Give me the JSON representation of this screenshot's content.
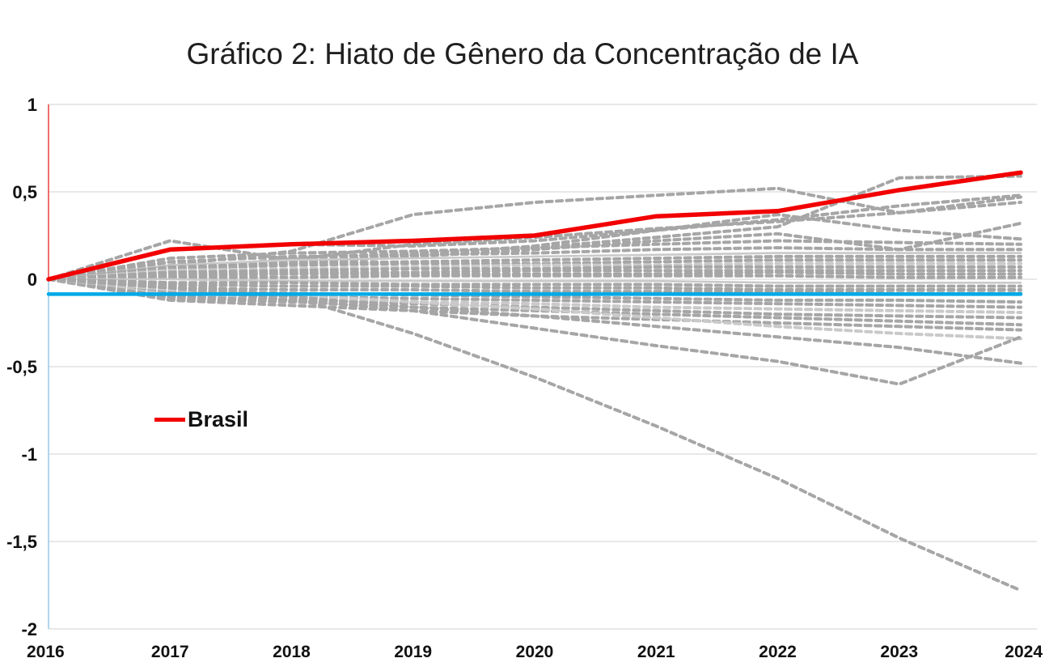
{
  "title": "Gráfico 2: Hiato de Gênero da Concentração de IA",
  "legend": {
    "label": "Brasil"
  },
  "colors": {
    "brasil": "#f20000",
    "highlight_blue": "#00a9e8",
    "gray": "#a6a6a6",
    "gray_light": "#c9c9c9",
    "gridline": "#d9d9d9",
    "axis_segment_red": "#f25c5c",
    "axis_segment_blue": "#a8d2ea",
    "tick_label": "#111111"
  },
  "chart_data": {
    "type": "line",
    "x": [
      2016,
      2017,
      2018,
      2019,
      2020,
      2021,
      2022,
      2023,
      2024
    ],
    "x_tick_labels": [
      "2016",
      "2017",
      "2018",
      "2019",
      "2020",
      "2021",
      "2022",
      "2023",
      "2024"
    ],
    "y_ticks": [
      1,
      0.5,
      0,
      -0.5,
      -1,
      -1.5,
      -2
    ],
    "y_tick_labels": [
      "1",
      "0,5",
      "0",
      "-0,5",
      "-1",
      "-1,5",
      "-2"
    ],
    "ylim": [
      -2,
      1
    ],
    "xlabel": "",
    "ylabel": "",
    "grid": "horizontal",
    "legend_position": "inside-left",
    "series": [
      {
        "id": "country-01",
        "role": "gray",
        "values": [
          0,
          0.08,
          0.16,
          0.37,
          0.44,
          0.48,
          0.52,
          0.38,
          0.47
        ]
      },
      {
        "id": "country-02",
        "role": "gray",
        "values": [
          0,
          0.22,
          0.11,
          0.2,
          0.24,
          0.29,
          0.33,
          0.38,
          0.44
        ]
      },
      {
        "id": "country-03",
        "role": "gray",
        "values": [
          0,
          0.05,
          0.12,
          0.15,
          0.18,
          0.24,
          0.3,
          0.58,
          0.59
        ]
      },
      {
        "id": "country-04",
        "role": "gray",
        "values": [
          0,
          0.17,
          0.2,
          0.19,
          0.22,
          0.28,
          0.34,
          0.42,
          0.48
        ]
      },
      {
        "id": "country-05",
        "role": "gray",
        "values": [
          0,
          0.06,
          0.1,
          0.14,
          0.19,
          0.28,
          0.37,
          0.28,
          0.23
        ]
      },
      {
        "id": "country-06",
        "role": "gray",
        "values": [
          0,
          0.04,
          0.09,
          0.13,
          0.17,
          0.22,
          0.26,
          0.17,
          0.32
        ]
      },
      {
        "id": "country-07",
        "role": "gray",
        "values": [
          0,
          0.12,
          0.15,
          0.16,
          0.18,
          0.2,
          0.22,
          0.21,
          0.2
        ]
      },
      {
        "id": "country-08",
        "role": "gray",
        "values": [
          0,
          0.1,
          0.13,
          0.14,
          0.15,
          0.17,
          0.18,
          0.17,
          0.17
        ]
      },
      {
        "id": "country-09",
        "role": "gray-solid-light",
        "values": [
          0,
          0.08,
          0.11,
          0.12,
          0.13,
          0.14,
          0.15,
          0.15,
          0.15
        ]
      },
      {
        "id": "country-10",
        "role": "gray",
        "values": [
          0,
          0.07,
          0.09,
          0.1,
          0.11,
          0.12,
          0.13,
          0.13,
          0.13
        ]
      },
      {
        "id": "country-11",
        "role": "gray",
        "values": [
          0,
          0.06,
          0.08,
          0.09,
          0.09,
          0.1,
          0.11,
          0.11,
          0.11
        ]
      },
      {
        "id": "country-12",
        "role": "gray-light",
        "values": [
          0,
          0.05,
          0.06,
          0.07,
          0.08,
          0.08,
          0.09,
          0.09,
          0.09
        ]
      },
      {
        "id": "country-13",
        "role": "gray",
        "values": [
          0,
          0.04,
          0.05,
          0.06,
          0.06,
          0.07,
          0.07,
          0.07,
          0.07
        ]
      },
      {
        "id": "country-14",
        "role": "gray",
        "values": [
          0,
          0.03,
          0.04,
          0.04,
          0.05,
          0.05,
          0.05,
          0.05,
          0.05
        ]
      },
      {
        "id": "country-15",
        "role": "gray",
        "values": [
          0,
          0.02,
          0.03,
          0.03,
          0.03,
          0.03,
          0.04,
          0.03,
          0.03
        ]
      },
      {
        "id": "country-16",
        "role": "gray",
        "values": [
          0,
          0.01,
          0.01,
          0.02,
          0.02,
          0.02,
          0.02,
          0.01,
          0.01
        ]
      },
      {
        "id": "country-17",
        "role": "gray-solid-light",
        "values": [
          0,
          0,
          -0.01,
          -0.01,
          -0.01,
          -0.01,
          -0.02,
          -0.02,
          -0.02
        ]
      },
      {
        "id": "country-18",
        "role": "gray",
        "values": [
          0,
          -0.02,
          -0.02,
          -0.03,
          -0.03,
          -0.03,
          -0.04,
          -0.04,
          -0.04
        ]
      },
      {
        "id": "country-19",
        "role": "gray",
        "values": [
          0,
          -0.03,
          -0.04,
          -0.04,
          -0.05,
          -0.05,
          -0.06,
          -0.06,
          -0.06
        ]
      },
      {
        "id": "country-20",
        "role": "gray",
        "values": [
          0,
          -0.05,
          -0.06,
          -0.06,
          -0.07,
          -0.07,
          -0.07,
          -0.08,
          -0.08
        ]
      },
      {
        "id": "country-21",
        "role": "gray",
        "values": [
          0,
          -0.07,
          -0.08,
          -0.09,
          -0.1,
          -0.11,
          -0.12,
          -0.12,
          -0.13
        ]
      },
      {
        "id": "country-22",
        "role": "gray",
        "values": [
          0,
          -0.08,
          -0.1,
          -0.11,
          -0.12,
          -0.13,
          -0.14,
          -0.15,
          -0.16
        ]
      },
      {
        "id": "country-23",
        "role": "gray-light",
        "values": [
          0,
          -0.09,
          -0.11,
          -0.13,
          -0.14,
          -0.16,
          -0.17,
          -0.18,
          -0.19
        ]
      },
      {
        "id": "country-24",
        "role": "gray",
        "values": [
          0,
          -0.1,
          -0.12,
          -0.14,
          -0.16,
          -0.18,
          -0.2,
          -0.21,
          -0.22
        ]
      },
      {
        "id": "country-25",
        "role": "gray",
        "values": [
          0,
          -0.11,
          -0.13,
          -0.16,
          -0.18,
          -0.2,
          -0.22,
          -0.24,
          -0.26
        ]
      },
      {
        "id": "country-26",
        "role": "gray",
        "values": [
          0,
          -0.12,
          -0.15,
          -0.18,
          -0.21,
          -0.23,
          -0.25,
          -0.27,
          -0.29
        ]
      },
      {
        "id": "country-27",
        "role": "gray-light",
        "values": [
          0,
          -0.06,
          -0.09,
          -0.13,
          -0.17,
          -0.22,
          -0.27,
          -0.31,
          -0.34
        ]
      },
      {
        "id": "country-28",
        "role": "gray",
        "values": [
          0,
          -0.04,
          -0.1,
          -0.16,
          -0.21,
          -0.27,
          -0.33,
          -0.39,
          -0.48
        ]
      },
      {
        "id": "country-29",
        "role": "gray",
        "values": [
          0,
          -0.05,
          -0.12,
          -0.18,
          -0.28,
          -0.38,
          -0.47,
          -0.6,
          -0.33
        ]
      },
      {
        "id": "country-30",
        "role": "gray",
        "values": [
          0,
          -0.02,
          -0.1,
          -0.31,
          -0.56,
          -0.84,
          -1.14,
          -1.48,
          -1.78
        ]
      },
      {
        "id": "linha-azul",
        "role": "blue",
        "values": [
          -0.085,
          -0.085,
          -0.085,
          -0.085,
          -0.085,
          -0.085,
          -0.085,
          -0.085,
          -0.085
        ]
      },
      {
        "id": "brasil",
        "name": "Brasil",
        "role": "brasil",
        "values": [
          0,
          0.17,
          0.2,
          0.22,
          0.25,
          0.36,
          0.39,
          0.51,
          0.61
        ]
      }
    ]
  }
}
